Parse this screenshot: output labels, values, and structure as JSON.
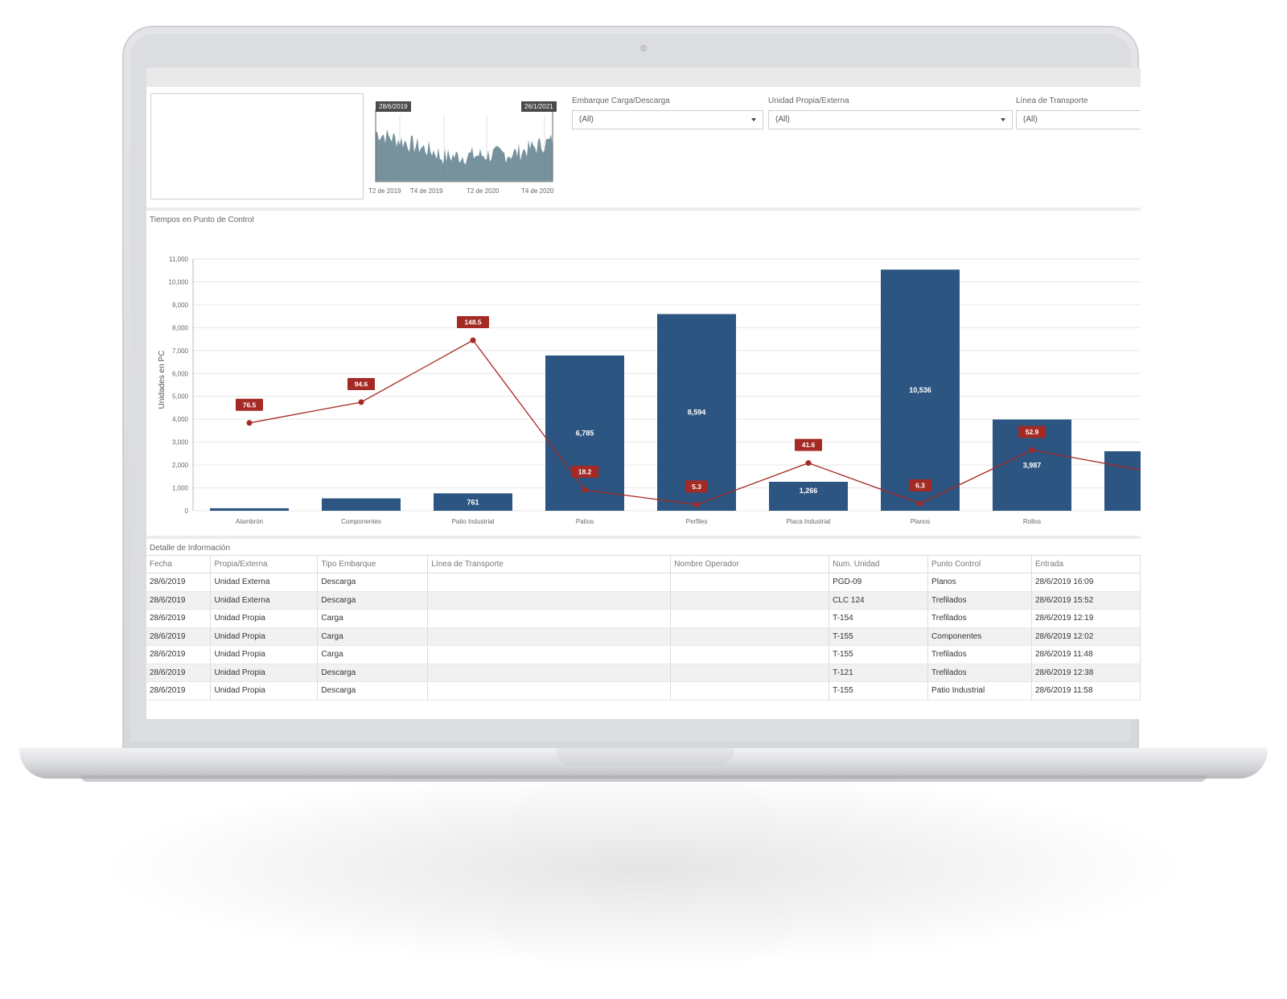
{
  "filters": {
    "date_start": "28/6/2019",
    "date_end": "26/1/2021",
    "timeline_ticks": [
      "T2 de 2019",
      "T4 de 2019",
      "T2 de 2020",
      "T4 de 2020"
    ],
    "embarque": {
      "label": "Embarque Carga/Descarga",
      "value": "(All)"
    },
    "unidad": {
      "label": "Unidad Propia/Externa",
      "value": "(All)"
    },
    "linea": {
      "label": "Línea de Transporte",
      "value": "(All)"
    }
  },
  "chart_panel": {
    "title": "Tiempos en Punto de Control"
  },
  "chart_data": {
    "type": "bar",
    "title": "Tiempos en Punto de Control",
    "xlabel": "",
    "ylabel": "Unidades en PC",
    "ylim": [
      0,
      11000
    ],
    "yticks": [
      "0",
      "1,000",
      "2,000",
      "3,000",
      "4,000",
      "5,000",
      "6,000",
      "7,000",
      "8,000",
      "9,000",
      "10,000",
      "11,000"
    ],
    "categories": [
      "Alambrón",
      "Componentes",
      "Patio Industrial",
      "Patios",
      "Perfiles",
      "Placa Industrial",
      "Planos",
      "Rollos"
    ],
    "series": [
      {
        "type": "bar",
        "values": [
          110,
          540,
          761,
          6785,
          8594,
          1266,
          10536,
          3987
        ],
        "labels": [
          "",
          "",
          "761",
          "6,785",
          "8,594",
          "1,266",
          "10,536",
          "3,987"
        ],
        "color": "#2d5582"
      },
      {
        "type": "line",
        "values": [
          76.5,
          94.6,
          148.5,
          18.2,
          5.3,
          41.6,
          6.3,
          52.9
        ],
        "labels": [
          "76.5",
          "94.6",
          "148.5",
          "18.2",
          "5.3",
          "41.6",
          "6.3",
          "52.9"
        ],
        "color": "#a52a25"
      }
    ],
    "grid": true
  },
  "table_panel": {
    "title": "Detalle de Información",
    "columns": [
      "Fecha",
      "Propia/Externa",
      "Tipo Embarque",
      "Línea de Transporte",
      "Nombre Operador",
      "Num. Unidad",
      "Punto Control",
      "Entrada"
    ],
    "rows": [
      [
        "28/6/2019",
        "Unidad Externa",
        "Descarga",
        "",
        "",
        "PGD-09",
        "Planos",
        "28/6/2019 16:09"
      ],
      [
        "28/6/2019",
        "Unidad Externa",
        "Descarga",
        "",
        "",
        "CLC 124",
        "Trefilados",
        "28/6/2019 15:52"
      ],
      [
        "28/6/2019",
        "Unidad Propia",
        "Carga",
        "",
        "",
        "T-154",
        "Trefilados",
        "28/6/2019 12:19"
      ],
      [
        "28/6/2019",
        "Unidad Propia",
        "Carga",
        "",
        "",
        "T-155",
        "Componentes",
        "28/6/2019 12:02"
      ],
      [
        "28/6/2019",
        "Unidad Propia",
        "Carga",
        "",
        "",
        "T-155",
        "Trefilados",
        "28/6/2019 11:48"
      ],
      [
        "28/6/2019",
        "Unidad Propia",
        "Descarga",
        "",
        "",
        "T-121",
        "Trefilados",
        "28/6/2019 12:38"
      ],
      [
        "28/6/2019",
        "Unidad Propia",
        "Descarga",
        "",
        "",
        "T-155",
        "Patio Industrial",
        "28/6/2019 11:58"
      ]
    ]
  },
  "colors": {
    "bar": "#2d5582",
    "line": "#a52a25",
    "timeline": "#5f7f8c"
  }
}
